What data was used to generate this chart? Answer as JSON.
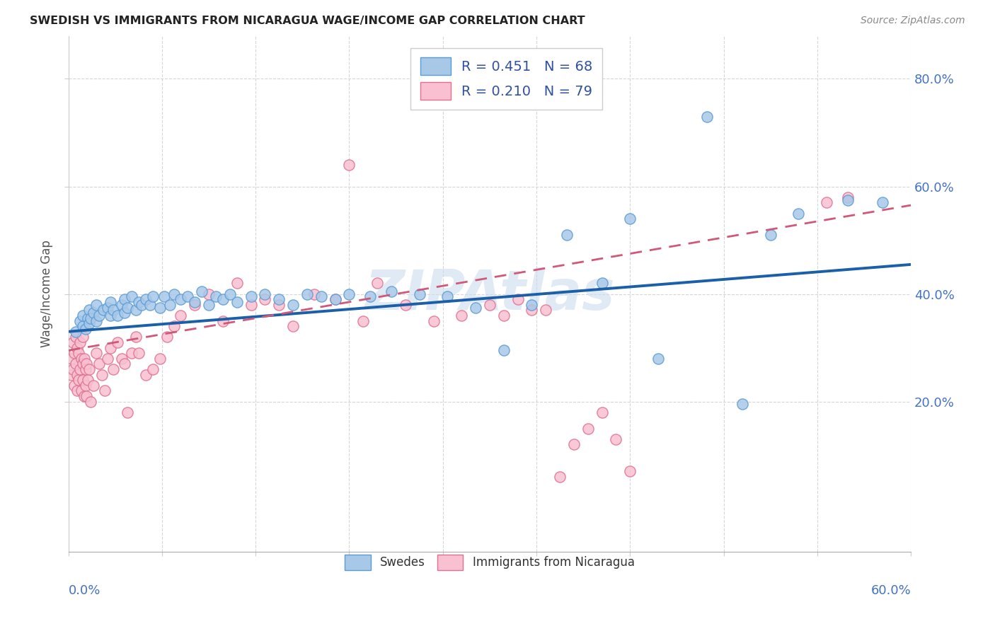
{
  "title": "SWEDISH VS IMMIGRANTS FROM NICARAGUA WAGE/INCOME GAP CORRELATION CHART",
  "source": "Source: ZipAtlas.com",
  "ylabel": "Wage/Income Gap",
  "y_ticks": [
    0.2,
    0.4,
    0.6,
    0.8
  ],
  "y_tick_labels": [
    "20.0%",
    "40.0%",
    "60.0%",
    "80.0%"
  ],
  "x_min": 0.0,
  "x_max": 0.6,
  "y_min": -0.08,
  "y_max": 0.88,
  "swedes_color": "#a8c8e8",
  "swedes_edge_color": "#5b9bd5",
  "nicaragua_color": "#f8c0d0",
  "nicaragua_edge_color": "#e07090",
  "trend_swedes_color": "#1a5fa8",
  "trend_nicaragua_color": "#d05878",
  "watermark_color": "#ccddef",
  "legend_label_1": "R = 0.451   N = 68",
  "legend_label_2": "R = 0.210   N = 79",
  "legend_bottom_label_1": "Swedes",
  "legend_bottom_label_2": "Immigrants from Nicaragua",
  "swedes_x": [
    0.005,
    0.008,
    0.01,
    0.01,
    0.012,
    0.014,
    0.015,
    0.015,
    0.016,
    0.018,
    0.02,
    0.02,
    0.022,
    0.025,
    0.028,
    0.03,
    0.03,
    0.032,
    0.035,
    0.038,
    0.04,
    0.04,
    0.042,
    0.045,
    0.048,
    0.05,
    0.052,
    0.055,
    0.058,
    0.06,
    0.065,
    0.068,
    0.072,
    0.075,
    0.08,
    0.085,
    0.09,
    0.095,
    0.1,
    0.105,
    0.11,
    0.115,
    0.12,
    0.13,
    0.14,
    0.15,
    0.16,
    0.17,
    0.18,
    0.19,
    0.2,
    0.215,
    0.23,
    0.25,
    0.27,
    0.29,
    0.31,
    0.33,
    0.355,
    0.38,
    0.4,
    0.42,
    0.455,
    0.48,
    0.5,
    0.52,
    0.555,
    0.58
  ],
  "swedes_y": [
    0.33,
    0.35,
    0.34,
    0.36,
    0.335,
    0.355,
    0.345,
    0.37,
    0.355,
    0.365,
    0.35,
    0.38,
    0.36,
    0.37,
    0.375,
    0.36,
    0.385,
    0.37,
    0.36,
    0.38,
    0.365,
    0.39,
    0.375,
    0.395,
    0.37,
    0.385,
    0.38,
    0.39,
    0.38,
    0.395,
    0.375,
    0.395,
    0.38,
    0.4,
    0.39,
    0.395,
    0.385,
    0.405,
    0.38,
    0.395,
    0.39,
    0.4,
    0.385,
    0.395,
    0.4,
    0.39,
    0.38,
    0.4,
    0.395,
    0.39,
    0.4,
    0.395,
    0.405,
    0.4,
    0.395,
    0.375,
    0.295,
    0.38,
    0.51,
    0.42,
    0.54,
    0.28,
    0.73,
    0.195,
    0.51,
    0.55,
    0.575,
    0.57
  ],
  "nicaragua_x": [
    0.002,
    0.002,
    0.003,
    0.003,
    0.004,
    0.004,
    0.005,
    0.005,
    0.006,
    0.006,
    0.006,
    0.007,
    0.007,
    0.008,
    0.008,
    0.009,
    0.009,
    0.01,
    0.01,
    0.01,
    0.011,
    0.011,
    0.012,
    0.012,
    0.013,
    0.013,
    0.014,
    0.015,
    0.016,
    0.018,
    0.02,
    0.022,
    0.024,
    0.026,
    0.028,
    0.03,
    0.032,
    0.035,
    0.038,
    0.04,
    0.042,
    0.045,
    0.048,
    0.05,
    0.055,
    0.06,
    0.065,
    0.07,
    0.075,
    0.08,
    0.09,
    0.1,
    0.11,
    0.12,
    0.13,
    0.14,
    0.15,
    0.16,
    0.175,
    0.19,
    0.2,
    0.21,
    0.22,
    0.24,
    0.26,
    0.28,
    0.3,
    0.31,
    0.32,
    0.33,
    0.34,
    0.35,
    0.36,
    0.37,
    0.38,
    0.39,
    0.4,
    0.54,
    0.555
  ],
  "nicaragua_y": [
    0.28,
    0.25,
    0.31,
    0.26,
    0.29,
    0.23,
    0.32,
    0.27,
    0.3,
    0.25,
    0.22,
    0.29,
    0.24,
    0.31,
    0.26,
    0.28,
    0.22,
    0.32,
    0.27,
    0.24,
    0.21,
    0.28,
    0.26,
    0.23,
    0.27,
    0.21,
    0.24,
    0.26,
    0.2,
    0.23,
    0.29,
    0.27,
    0.25,
    0.22,
    0.28,
    0.3,
    0.26,
    0.31,
    0.28,
    0.27,
    0.18,
    0.29,
    0.32,
    0.29,
    0.25,
    0.26,
    0.28,
    0.32,
    0.34,
    0.36,
    0.38,
    0.4,
    0.35,
    0.42,
    0.38,
    0.39,
    0.38,
    0.34,
    0.4,
    0.39,
    0.64,
    0.35,
    0.42,
    0.38,
    0.35,
    0.36,
    0.38,
    0.36,
    0.39,
    0.37,
    0.37,
    0.06,
    0.12,
    0.15,
    0.18,
    0.13,
    0.07,
    0.57,
    0.58
  ]
}
